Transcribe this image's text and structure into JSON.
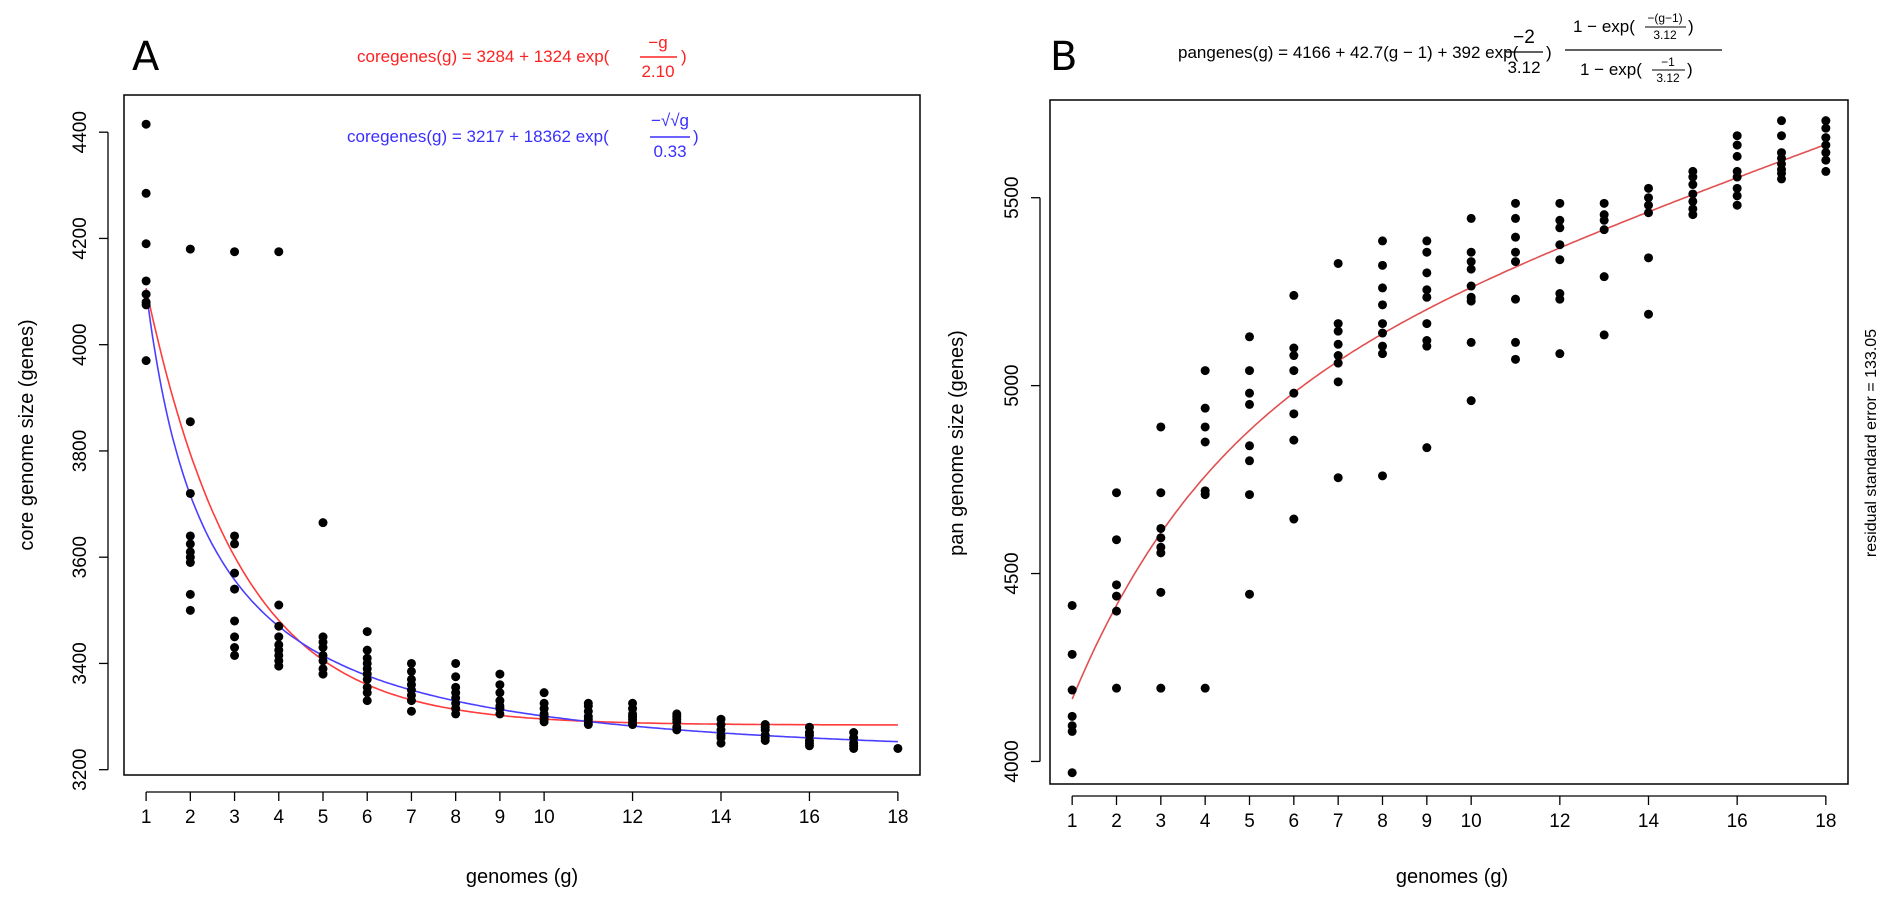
{
  "chart_data": [
    {
      "type": "scatter",
      "panel_label": "A",
      "xlabel": "genomes (g)",
      "ylabel": "core genome size (genes)",
      "xlim": [
        0.5,
        18.5
      ],
      "ylim": [
        3190,
        4470
      ],
      "x_ticks": [
        1,
        2,
        3,
        4,
        5,
        6,
        7,
        8,
        9,
        10,
        12,
        14,
        16,
        18
      ],
      "y_ticks": [
        3200,
        3400,
        3600,
        3800,
        4000,
        4200,
        4400
      ],
      "equations": {
        "red": {
          "color": "#ff2020",
          "lhs": "coregenes(g) = 3284 + 1324 exp(",
          "frac_num": "−g",
          "frac_den": "2.10",
          "close": ")"
        },
        "blue": {
          "color": "#3a2fff",
          "lhs": "coregenes(g) = 3217 + 18362 exp(",
          "frac_num": "−√√g",
          "frac_den": "0.33",
          "close": ")"
        }
      },
      "fits": [
        {
          "name": "exp fit",
          "color": "#ff3b3b",
          "model": "coregenes_exp",
          "a": 3284,
          "b": 1324,
          "c": 2.1
        },
        {
          "name": "root fit",
          "color": "#4a3fff",
          "model": "coregenes_root",
          "a": 3217,
          "b": 18362,
          "c": 0.33
        }
      ],
      "series": [
        {
          "x": 1,
          "values": [
            4415,
            4285,
            4190,
            4120,
            4095,
            4080,
            4075,
            3970
          ]
        },
        {
          "x": 2,
          "values": [
            4180,
            3855,
            3720,
            3640,
            3625,
            3610,
            3600,
            3590,
            3530,
            3500
          ]
        },
        {
          "x": 3,
          "values": [
            4175,
            3640,
            3625,
            3570,
            3540,
            3480,
            3450,
            3430,
            3415
          ]
        },
        {
          "x": 4,
          "values": [
            4175,
            3510,
            3470,
            3450,
            3435,
            3425,
            3415,
            3405,
            3395
          ]
        },
        {
          "x": 5,
          "values": [
            3665,
            3450,
            3440,
            3430,
            3415,
            3405,
            3390,
            3380
          ]
        },
        {
          "x": 6,
          "values": [
            3460,
            3425,
            3410,
            3400,
            3390,
            3380,
            3370,
            3355,
            3345,
            3330
          ]
        },
        {
          "x": 7,
          "values": [
            3400,
            3385,
            3370,
            3360,
            3350,
            3340,
            3330,
            3310
          ]
        },
        {
          "x": 8,
          "values": [
            3400,
            3375,
            3355,
            3345,
            3335,
            3325,
            3315,
            3305
          ]
        },
        {
          "x": 9,
          "values": [
            3380,
            3360,
            3345,
            3330,
            3320,
            3315,
            3305
          ]
        },
        {
          "x": 10,
          "values": [
            3345,
            3325,
            3315,
            3305,
            3300,
            3295,
            3290
          ]
        },
        {
          "x": 11,
          "values": [
            3325,
            3320,
            3310,
            3300,
            3295,
            3290,
            3285
          ]
        },
        {
          "x": 12,
          "values": [
            3325,
            3315,
            3305,
            3300,
            3295,
            3290,
            3285
          ]
        },
        {
          "x": 13,
          "values": [
            3305,
            3300,
            3295,
            3290,
            3280,
            3275
          ]
        },
        {
          "x": 14,
          "values": [
            3295,
            3285,
            3275,
            3265,
            3260,
            3250
          ]
        },
        {
          "x": 15,
          "values": [
            3285,
            3280,
            3275,
            3265,
            3260,
            3255
          ]
        },
        {
          "x": 16,
          "values": [
            3280,
            3270,
            3265,
            3255,
            3250,
            3245
          ]
        },
        {
          "x": 17,
          "values": [
            3270,
            3260,
            3250,
            3245,
            3240
          ]
        },
        {
          "x": 18,
          "values": [
            3240
          ]
        }
      ]
    },
    {
      "type": "scatter",
      "panel_label": "B",
      "xlabel": "genomes (g)",
      "ylabel": "pan genome size (genes)",
      "xlim": [
        0.5,
        18.5
      ],
      "ylim": [
        3940,
        5760
      ],
      "x_ticks": [
        1,
        2,
        3,
        4,
        5,
        6,
        7,
        8,
        9,
        10,
        12,
        14,
        16,
        18
      ],
      "y_ticks": [
        4000,
        4500,
        5000,
        5500
      ],
      "side_note": "residual standard error = 133.05",
      "equation": {
        "color": "#000000",
        "lhs": "pangenes(g) = 4166 + 42.7(g − 1) + 392 exp(",
        "frac1_num": "−2",
        "frac1_den": "3.12",
        "frac2_num": "1 − exp(",
        "frac2_num_inner_num": "−(g−1)",
        "frac2_num_inner_den": "3.12",
        "frac2_den": "1 − exp(",
        "frac2_den_inner_num": "−1",
        "frac2_den_inner_den": "3.12",
        "close": ")"
      },
      "fits": [
        {
          "name": "pan fit",
          "color": "#e05050",
          "model": "pangenes",
          "a": 4166,
          "b": 42.7,
          "c": 392,
          "d": 3.12
        }
      ],
      "series": [
        {
          "x": 1,
          "values": [
            4415,
            4285,
            4190,
            4120,
            4095,
            4080,
            3970
          ]
        },
        {
          "x": 2,
          "values": [
            4715,
            4590,
            4470,
            4440,
            4400,
            4195
          ]
        },
        {
          "x": 3,
          "values": [
            4890,
            4715,
            4620,
            4595,
            4570,
            4555,
            4450,
            4195
          ]
        },
        {
          "x": 4,
          "values": [
            5040,
            4940,
            4890,
            4850,
            4720,
            4710,
            4195
          ]
        },
        {
          "x": 5,
          "values": [
            5130,
            5040,
            4980,
            4950,
            4840,
            4800,
            4710,
            4445
          ]
        },
        {
          "x": 6,
          "values": [
            5240,
            5100,
            5080,
            5040,
            4980,
            4925,
            4855,
            4645
          ]
        },
        {
          "x": 7,
          "values": [
            5325,
            5165,
            5145,
            5110,
            5080,
            5060,
            5010,
            4755
          ]
        },
        {
          "x": 8,
          "values": [
            5385,
            5320,
            5260,
            5215,
            5165,
            5140,
            5105,
            5085,
            4760
          ]
        },
        {
          "x": 9,
          "values": [
            5385,
            5355,
            5300,
            5255,
            5235,
            5165,
            5120,
            5105,
            4835
          ]
        },
        {
          "x": 10,
          "values": [
            5445,
            5355,
            5330,
            5310,
            5265,
            5235,
            5225,
            5115,
            4960
          ]
        },
        {
          "x": 11,
          "values": [
            5485,
            5445,
            5395,
            5355,
            5330,
            5230,
            5115,
            5070
          ]
        },
        {
          "x": 12,
          "values": [
            5485,
            5440,
            5420,
            5375,
            5335,
            5245,
            5230,
            5085
          ]
        },
        {
          "x": 13,
          "values": [
            5485,
            5455,
            5440,
            5415,
            5290,
            5135
          ]
        },
        {
          "x": 14,
          "values": [
            5525,
            5500,
            5480,
            5460,
            5340,
            5190
          ]
        },
        {
          "x": 15,
          "values": [
            5570,
            5555,
            5535,
            5510,
            5490,
            5470,
            5455
          ]
        },
        {
          "x": 16,
          "values": [
            5665,
            5640,
            5610,
            5570,
            5555,
            5525,
            5505,
            5480
          ]
        },
        {
          "x": 17,
          "values": [
            5705,
            5665,
            5620,
            5605,
            5590,
            5575,
            5565,
            5550
          ]
        },
        {
          "x": 18,
          "values": [
            5705,
            5685,
            5660,
            5640,
            5620,
            5600,
            5570
          ]
        }
      ]
    }
  ]
}
